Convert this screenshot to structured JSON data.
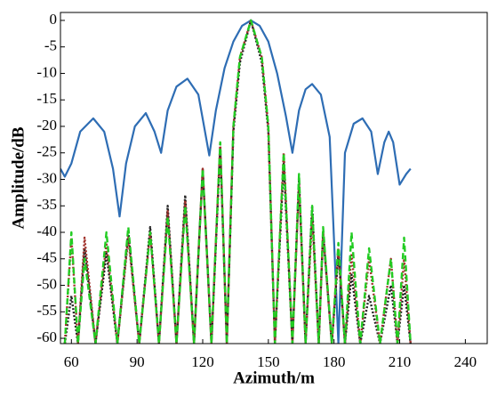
{
  "chart_data": {
    "type": "line",
    "xlabel": "Azimuth/m",
    "ylabel": "Amplitude/dB",
    "xlim": [
      55,
      250
    ],
    "xticks": [
      60,
      90,
      120,
      150,
      180,
      210,
      240
    ],
    "ylim": [
      -61,
      1.5
    ],
    "yticks": [
      0,
      -5,
      -10,
      -15,
      -20,
      -25,
      -30,
      -35,
      -40,
      -45,
      -50,
      -55,
      -60
    ],
    "series": [
      {
        "color": "#2e6db4",
        "style": "solid",
        "x": [
          55,
          57,
          60,
          64,
          70,
          75,
          79,
          82,
          85,
          89,
          94,
          98,
          101,
          104,
          108,
          113,
          118,
          123,
          126,
          130,
          134,
          138,
          142,
          146,
          150,
          154,
          158,
          161,
          164,
          167,
          170,
          174,
          178,
          182,
          185,
          189,
          193,
          197,
          200,
          203,
          205,
          207,
          210,
          213,
          215
        ],
        "values": [
          -28,
          -29.5,
          -27,
          -21,
          -18.5,
          -21,
          -28,
          -37,
          -27,
          -20,
          -17.5,
          -21,
          -25,
          -17,
          -12.5,
          -11,
          -14,
          -25.5,
          -17,
          -9,
          -4,
          -1,
          0,
          -1,
          -4,
          -10,
          -18,
          -25,
          -17,
          -13,
          -12,
          -14,
          -22,
          -61,
          -25,
          -19.5,
          -18.5,
          -21,
          -29,
          -23,
          -21,
          -23,
          -31,
          -29,
          -28
        ]
      },
      {
        "color": "#222222",
        "style": "dotted",
        "x": [
          57,
          60,
          63,
          66,
          71,
          76,
          81,
          86,
          91,
          96,
          100,
          104,
          108,
          112,
          116,
          120,
          124,
          128,
          131,
          134,
          137,
          142,
          147,
          150,
          153,
          157,
          161,
          164,
          167,
          170,
          173,
          175,
          179,
          182,
          185,
          188,
          192,
          196,
          201,
          206,
          209,
          212,
          215
        ],
        "values": [
          -61,
          -52,
          -61,
          -43,
          -61,
          -44,
          -61,
          -40,
          -61,
          -39,
          -61,
          -35,
          -61,
          -33,
          -61,
          -28,
          -61,
          -24,
          -61,
          -21,
          -8,
          0,
          -8,
          -21,
          -61,
          -27,
          -61,
          -30,
          -61,
          -35,
          -61,
          -40,
          -61,
          -44,
          -61,
          -48,
          -61,
          -52,
          -61,
          -50,
          -61,
          -50,
          -61
        ]
      },
      {
        "color": "#a0302a",
        "style": "dotted",
        "x": [
          57,
          60,
          63,
          66,
          71,
          76,
          81,
          86,
          91,
          96,
          100,
          104,
          108,
          112,
          116,
          120,
          124,
          128,
          131,
          134,
          137,
          142,
          147,
          150,
          153,
          157,
          161,
          164,
          167,
          170,
          173,
          175,
          179,
          182,
          185,
          188,
          192,
          196,
          201,
          206,
          209,
          212,
          215
        ],
        "values": [
          -61,
          -41,
          -61,
          -41,
          -61,
          -42,
          -61,
          -41,
          -61,
          -40,
          -61,
          -36,
          -61,
          -34,
          -61,
          -28,
          -61,
          -23,
          -61,
          -20,
          -7,
          0,
          -7,
          -20,
          -61,
          -25,
          -61,
          -31,
          -61,
          -37,
          -61,
          -40,
          -61,
          -43,
          -61,
          -44,
          -61,
          -45,
          -61,
          -45,
          -61,
          -45,
          -61
        ]
      },
      {
        "color": "#22cc22",
        "style": "dashed",
        "x": [
          57,
          60,
          63,
          66,
          71,
          76,
          81,
          86,
          91,
          96,
          100,
          104,
          108,
          112,
          116,
          120,
          124,
          128,
          131,
          134,
          137,
          142,
          147,
          150,
          153,
          157,
          161,
          164,
          167,
          170,
          173,
          175,
          179,
          182,
          185,
          188,
          192,
          196,
          201,
          206,
          209,
          212,
          215
        ],
        "values": [
          -61,
          -40,
          -61,
          -45,
          -61,
          -40,
          -61,
          -39,
          -61,
          -40,
          -61,
          -37,
          -61,
          -35,
          -61,
          -28,
          -61,
          -23,
          -61,
          -20,
          -7,
          0,
          -7,
          -20,
          -61,
          -25,
          -61,
          -29,
          -61,
          -35,
          -61,
          -39,
          -61,
          -42,
          -61,
          -40,
          -61,
          -43,
          -61,
          -45,
          -61,
          -41,
          -61
        ]
      }
    ]
  }
}
